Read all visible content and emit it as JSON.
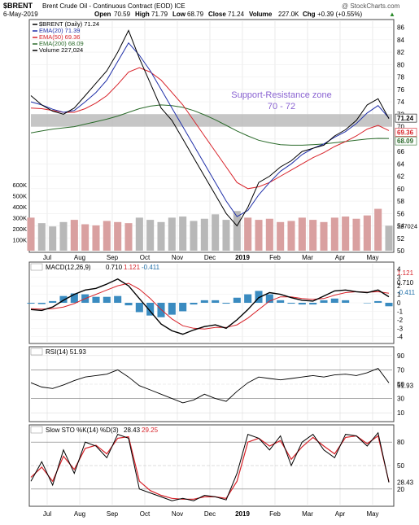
{
  "header": {
    "symbol": "$BRENT",
    "name": "Brent Crude Oil - Continuous Contract (EOD) ICE",
    "watermark": "@ StockCharts.com",
    "date": "6-May-2019",
    "open_label": "Open",
    "open": "70.59",
    "high_label": "High",
    "high": "71.79",
    "low_label": "Low",
    "low": "68.79",
    "close_label": "Close",
    "close": "71.24",
    "volume_label": "Volume",
    "volume": "227.0K",
    "chg_label": "Chg",
    "chg": "+0.39 (+0.55%)",
    "chg_arrow": "▲"
  },
  "legend": [
    {
      "text": "$BRENT (Daily) 71.24",
      "color": "#000000"
    },
    {
      "text": "EMA(20) 71.39",
      "color": "#1f2fa8"
    },
    {
      "text": "EMA(50) 69.36",
      "color": "#d8232a"
    },
    {
      "text": "EMA(200) 68.09",
      "color": "#2b6b2b"
    },
    {
      "text": "Volume 227,024",
      "color": "#000000"
    }
  ],
  "annotation": {
    "line1": "Support-Resistance zone",
    "line2": "70 - 72",
    "color": "#8a63d2"
  },
  "price_tags": [
    {
      "text": "71.24",
      "color": "#000000",
      "bg": "#ffffff"
    },
    {
      "text": "69.36",
      "color": "#d8232a",
      "bg": "#ffffff"
    },
    {
      "text": "68.09",
      "color": "#2b6b2b",
      "bg": "#ffffff"
    }
  ],
  "price_axis": [
    "86",
    "84",
    "82",
    "80",
    "78",
    "76",
    "74",
    "72",
    "70",
    "68",
    "66",
    "64",
    "62",
    "60",
    "58",
    "56",
    "54",
    "52",
    "50"
  ],
  "volume_axis": [
    "600K",
    "500K",
    "400K",
    "300K",
    "200K",
    "100K"
  ],
  "volume_tag": "227024",
  "months_top": [
    "Jul",
    "Aug",
    "Sep",
    "Oct",
    "Nov",
    "Dec",
    "2019",
    "Feb",
    "Mar",
    "Apr",
    "May"
  ],
  "months_bottom": [
    "Jul",
    "Aug",
    "Sep",
    "Oct",
    "Nov",
    "Dec",
    "2019",
    "Feb",
    "Mar",
    "Apr",
    "May"
  ],
  "macd": {
    "label_prefix": "MACD(12,26,9)",
    "v1": "0.710",
    "v2": "1.121",
    "v3": "-0.411",
    "axis": [
      "4",
      "3",
      "2",
      "1",
      "0",
      "-1",
      "-2",
      "-3",
      "-4"
    ],
    "tags": [
      {
        "text": "1.121",
        "color": "#d8232a"
      },
      {
        "text": "0.710",
        "color": "#000000"
      },
      {
        "text": "-0.411",
        "color": "#1f6fa8"
      }
    ]
  },
  "rsi": {
    "label": "RSI(14) 51.93",
    "axis": [
      "90",
      "70",
      "50",
      "30",
      "10"
    ],
    "tag": "51.93"
  },
  "sto": {
    "label_prefix": "Slow STO %K(14) %D(3)",
    "k": "28.43",
    "d": "29.25",
    "axis": [
      "80",
      "50",
      "20"
    ],
    "tag": "28.43"
  },
  "chart_data": {
    "type": "line",
    "x": [
      "Jul",
      "Aug",
      "Sep",
      "Oct",
      "Nov",
      "Dec",
      "2019",
      "Feb",
      "Mar",
      "Apr",
      "May"
    ],
    "price": {
      "ylim": [
        50,
        87
      ],
      "close": [
        75,
        73.5,
        72.5,
        72,
        73,
        75,
        77,
        79,
        82,
        85.5,
        81,
        77,
        73,
        71,
        68,
        65,
        62,
        59,
        56,
        54,
        57,
        61,
        62,
        63.5,
        64.5,
        66,
        66.5,
        67,
        68.5,
        69.5,
        71,
        73.5,
        74.5,
        71.3
      ],
      "ema20": [
        74,
        73.5,
        72.8,
        72.3,
        72.6,
        74,
        75.5,
        77.5,
        80.5,
        83.5,
        81.5,
        79,
        76,
        73,
        70,
        67,
        64,
        61,
        58,
        55.5,
        56.5,
        59,
        61,
        62.8,
        64,
        65.5,
        66.5,
        67.2,
        68.3,
        69.2,
        70.5,
        72.2,
        73.4,
        71.4
      ],
      "ema50": [
        73,
        72.9,
        72.6,
        72.3,
        72.3,
        72.9,
        73.8,
        75,
        76.8,
        78.8,
        79.5,
        78.8,
        77.5,
        75.5,
        73.5,
        71,
        68.5,
        66,
        63.5,
        61,
        60,
        60.3,
        61,
        62,
        63,
        64,
        65,
        65.8,
        66.8,
        67.6,
        68.5,
        69.6,
        70.2,
        69.36
      ],
      "ema200": [
        69,
        69.3,
        69.6,
        69.8,
        70,
        70.4,
        70.8,
        71.2,
        71.7,
        72.3,
        72.9,
        73.3,
        73.5,
        73.4,
        73.1,
        72.6,
        71.9,
        71.1,
        70.2,
        69.3,
        68.5,
        67.8,
        67.4,
        67.1,
        67,
        67,
        67.1,
        67.2,
        67.4,
        67.6,
        67.8,
        68,
        68.1,
        68.09
      ],
      "zone": [
        70,
        72
      ]
    },
    "volume": {
      "ylim": [
        0,
        650000
      ],
      "values": [
        300000,
        250000,
        220000,
        260000,
        280000,
        240000,
        230000,
        270000,
        260000,
        250000,
        300000,
        280000,
        260000,
        300000,
        310000,
        270000,
        290000,
        330000,
        280000,
        360000,
        300000,
        280000,
        290000,
        260000,
        270000,
        300000,
        280000,
        260000,
        300000,
        310000,
        290000,
        320000,
        380000,
        227024
      ]
    },
    "macd": {
      "ylim": [
        -4.6,
        4.6
      ],
      "macd": [
        -0.8,
        -0.9,
        -0.5,
        0.3,
        1.0,
        1.5,
        1.7,
        2.2,
        2.8,
        2.0,
        0.5,
        -1.0,
        -2.5,
        -3.3,
        -3.7,
        -3.2,
        -2.8,
        -2.6,
        -3.0,
        -2.0,
        -0.8,
        0.6,
        1.2,
        1.0,
        0.6,
        0.3,
        0.2,
        0.8,
        1.4,
        1.5,
        1.3,
        1.2,
        1.5,
        0.71
      ],
      "signal": [
        -0.7,
        -0.75,
        -0.7,
        -0.5,
        -0.1,
        0.5,
        1.0,
        1.5,
        2.0,
        2.3,
        1.6,
        0.5,
        -0.8,
        -1.9,
        -2.7,
        -3.0,
        -3.1,
        -2.9,
        -2.9,
        -2.6,
        -1.8,
        -0.8,
        0.2,
        0.7,
        0.7,
        0.5,
        0.4,
        0.5,
        0.9,
        1.2,
        1.3,
        1.25,
        1.3,
        1.121
      ]
    },
    "rsi": {
      "ylim": [
        0,
        100
      ],
      "values": [
        52,
        46,
        44,
        49,
        55,
        60,
        62,
        64,
        70,
        60,
        48,
        42,
        36,
        30,
        24,
        28,
        36,
        30,
        26,
        40,
        52,
        60,
        58,
        56,
        58,
        60,
        62,
        60,
        63,
        64,
        62,
        66,
        72,
        51.93
      ]
    },
    "sto": {
      "ylim": [
        0,
        100
      ],
      "k": [
        30,
        55,
        25,
        70,
        40,
        80,
        75,
        60,
        90,
        85,
        20,
        15,
        10,
        5,
        8,
        5,
        12,
        10,
        6,
        40,
        90,
        85,
        70,
        88,
        50,
        80,
        90,
        70,
        60,
        90,
        88,
        75,
        92,
        28.43
      ],
      "d": [
        35,
        48,
        30,
        62,
        45,
        72,
        76,
        65,
        85,
        87,
        30,
        18,
        12,
        8,
        7,
        7,
        10,
        10,
        8,
        30,
        80,
        85,
        75,
        82,
        58,
        74,
        86,
        75,
        65,
        86,
        88,
        78,
        88,
        29.25
      ]
    }
  }
}
